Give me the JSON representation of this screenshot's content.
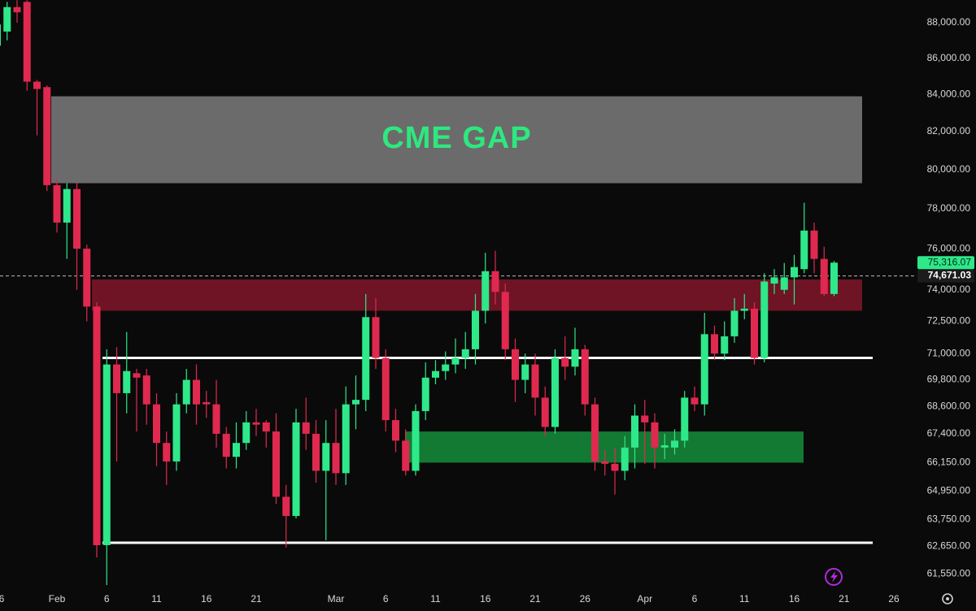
{
  "chart_data": {
    "type": "candlestick",
    "log": true,
    "grid": false,
    "up_color": "#2ee88a",
    "down_color": "#e0294f",
    "categories": [
      "6",
      null,
      null,
      null,
      null,
      null,
      "Feb",
      null,
      null,
      null,
      null,
      "6",
      null,
      null,
      null,
      null,
      "11",
      null,
      null,
      null,
      null,
      "16",
      null,
      null,
      null,
      null,
      "21",
      null,
      null,
      null,
      null,
      null,
      null,
      null,
      "Mar",
      null,
      null,
      null,
      null,
      "6",
      null,
      null,
      null,
      null,
      "11",
      null,
      null,
      null,
      null,
      "16",
      null,
      null,
      null,
      null,
      "21",
      null,
      null,
      null,
      null,
      "26",
      null,
      null,
      null,
      null,
      null,
      "Apr",
      null,
      null,
      null,
      null,
      "6",
      null,
      null,
      null,
      null,
      "11",
      null,
      null,
      null,
      null,
      "16",
      null,
      null,
      null,
      null,
      "21",
      null,
      null,
      null,
      null,
      "26"
    ],
    "open": [
      86700,
      87500,
      88900,
      89200,
      84700,
      84400,
      79200,
      77300,
      79000,
      76000,
      73200,
      62700,
      70500,
      69200,
      70100,
      70000,
      68700,
      67000,
      66200,
      68700,
      69800,
      68800,
      68700,
      67400,
      66400,
      67000,
      67900,
      67900,
      67500,
      64700,
      63900,
      67900,
      67400,
      65800,
      67000,
      65700,
      68700,
      68900,
      72700,
      70800,
      68000,
      67100,
      65800,
      68400,
      69900,
      70200,
      70500,
      70800,
      71200,
      73000,
      74900,
      73900,
      71200,
      69800,
      70500,
      69000,
      67700,
      70800,
      70400,
      71200,
      68700,
      66200,
      66100,
      65800,
      66800,
      68200,
      67900,
      66800,
      66800,
      67100,
      69000,
      68700,
      71900,
      71000,
      71800,
      73000,
      73100,
      70800,
      74300,
      74000,
      74600,
      75000,
      76900,
      75500,
      73800,
      null,
      null,
      null,
      null,
      null,
      null
    ],
    "high": [
      88500,
      89200,
      89300,
      89300,
      84800,
      84500,
      79500,
      79300,
      79300,
      76200,
      73400,
      71200,
      71300,
      72000,
      70300,
      70300,
      69200,
      67500,
      69200,
      70300,
      70500,
      69300,
      69800,
      67700,
      67900,
      68400,
      68500,
      68000,
      68300,
      65200,
      68500,
      69000,
      68000,
      68000,
      68500,
      69500,
      70000,
      73800,
      73600,
      71200,
      68500,
      67600,
      68700,
      70600,
      70700,
      71100,
      71700,
      72000,
      73800,
      75800,
      75900,
      74300,
      71700,
      71000,
      71000,
      69500,
      71200,
      71800,
      72200,
      71400,
      69000,
      66700,
      66800,
      67300,
      68700,
      68900,
      68300,
      67400,
      67600,
      69300,
      69500,
      72900,
      72300,
      72500,
      73600,
      73800,
      73400,
      74800,
      75000,
      75300,
      75700,
      78300,
      77300,
      76100,
      75400,
      null,
      null,
      null,
      null,
      null,
      null
    ],
    "low": [
      86300,
      87000,
      88000,
      84200,
      81800,
      78900,
      76800,
      75500,
      74000,
      72500,
      62200,
      61100,
      66200,
      68300,
      67500,
      67800,
      66000,
      65200,
      65800,
      68300,
      67800,
      68100,
      66800,
      65900,
      65900,
      66700,
      67300,
      66800,
      64400,
      62600,
      63800,
      66700,
      65300,
      62900,
      65200,
      65200,
      67600,
      68400,
      70300,
      67500,
      66600,
      65600,
      65600,
      68000,
      69600,
      69800,
      70100,
      70300,
      70500,
      72400,
      73300,
      70700,
      68800,
      69200,
      68200,
      67300,
      67400,
      69800,
      70000,
      68200,
      65800,
      65600,
      64800,
      65400,
      65900,
      66100,
      65900,
      66300,
      66500,
      66800,
      68400,
      68200,
      70700,
      70700,
      71500,
      72600,
      70500,
      70600,
      73800,
      73800,
      73300,
      74800,
      74800,
      73700,
      73700,
      null,
      null,
      null,
      null,
      null,
      null
    ],
    "close": [
      87900,
      88900,
      88600,
      84700,
      84300,
      79200,
      77300,
      79000,
      76000,
      73200,
      62700,
      70500,
      69200,
      70200,
      69900,
      68700,
      67000,
      66200,
      68700,
      69800,
      68700,
      68700,
      67400,
      66400,
      67000,
      67900,
      67800,
      67500,
      64700,
      63900,
      67900,
      67400,
      65800,
      67000,
      65700,
      68700,
      68900,
      72700,
      70800,
      68000,
      67100,
      65800,
      68400,
      69900,
      70200,
      70500,
      70800,
      71200,
      73000,
      74900,
      73900,
      71200,
      69800,
      70500,
      69000,
      67700,
      70800,
      70400,
      71200,
      68700,
      66200,
      66100,
      65800,
      66800,
      68200,
      67900,
      66800,
      66900,
      67100,
      69000,
      68700,
      71900,
      71000,
      71800,
      73000,
      73100,
      70800,
      74400,
      74600,
      74600,
      75100,
      76900,
      75500,
      73800,
      75316.07,
      null,
      null,
      null,
      null,
      null,
      null
    ],
    "ylim": [
      60940,
      89310
    ],
    "yticks": [
      {
        "value": 88000,
        "label": "88,000.00"
      },
      {
        "value": 86000,
        "label": "86,000.00"
      },
      {
        "value": 84000,
        "label": "84,000.00"
      },
      {
        "value": 82000,
        "label": "82,000.00"
      },
      {
        "value": 80000,
        "label": "80,000.00"
      },
      {
        "value": 78000,
        "label": "78,000.00"
      },
      {
        "value": 76000,
        "label": "76,000.00"
      },
      {
        "value": 74000,
        "label": "74,000.00"
      },
      {
        "value": 72500,
        "label": "72,500.00"
      },
      {
        "value": 71000,
        "label": "71,000.00"
      },
      {
        "value": 69800,
        "label": "69,800.00"
      },
      {
        "value": 68600,
        "label": "68,600.00"
      },
      {
        "value": 67400,
        "label": "67,400.00"
      },
      {
        "value": 66150,
        "label": "66,150.00"
      },
      {
        "value": 64950,
        "label": "64,950.00"
      },
      {
        "value": 63750,
        "label": "63,750.00"
      },
      {
        "value": 62650,
        "label": "62,650.00"
      },
      {
        "value": 61550,
        "label": "61,550.00"
      }
    ],
    "last_price": {
      "value": 75316.07,
      "label": "75,316.07",
      "color": "#2ee88a"
    },
    "price_line": {
      "value": 74671.03,
      "label": "74,671.03"
    },
    "zones": [
      {
        "label": "CME GAP",
        "low": 79300,
        "high": 83900,
        "color": "#6b6b6b"
      },
      {
        "low": 73000,
        "high": 74500,
        "color": "#6e1424"
      },
      {
        "low": 66150,
        "high": 67500,
        "color": "#137a33"
      }
    ],
    "levels": [
      70800,
      62800
    ]
  }
}
